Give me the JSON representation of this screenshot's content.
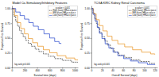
{
  "chart_data": [
    {
      "type": "step",
      "title": "Model Co-Stimulatory/Inhibitory Features",
      "xlabel": "Survival time (days)",
      "ylabel": "Proportion Free Survival",
      "legend_title": "p-value < 0.001",
      "annotation": "log-rank p<0.001",
      "legend": "upper right",
      "grid": false,
      "xlim": [
        0,
        1050
      ],
      "ylim": [
        0,
        1.05
      ],
      "xticks": [
        0,
        200,
        400,
        600,
        800,
        1000
      ],
      "yticks": [
        {
          "value": 0.0,
          "label": "0.00"
        },
        0.25,
        {
          "value": 0.5,
          "label": "0.50"
        },
        0.75,
        {
          "value": 1.0,
          "label": "1.00"
        }
      ],
      "series": [
        {
          "name": "High (n=xx) HR=x.x p=x.x",
          "color": "#111111",
          "line_style": "dashed",
          "x": [
            0,
            30,
            60,
            90,
            120,
            150,
            180,
            220,
            260,
            310,
            370,
            430,
            500,
            580,
            680,
            800,
            950,
            1050
          ],
          "values": [
            1.0,
            0.87,
            0.78,
            0.7,
            0.63,
            0.57,
            0.52,
            0.46,
            0.41,
            0.36,
            0.31,
            0.27,
            0.23,
            0.19,
            0.15,
            0.12,
            0.09,
            0.08
          ]
        },
        {
          "name": "Mid (n=xx) HR=x.x p=x.x",
          "color": "#E8901A",
          "line_style": "solid",
          "x": [
            0,
            40,
            90,
            140,
            200,
            260,
            330,
            410,
            500,
            600,
            720,
            860,
            1000,
            1050
          ],
          "values": [
            1.0,
            0.88,
            0.76,
            0.66,
            0.57,
            0.49,
            0.42,
            0.36,
            0.3,
            0.25,
            0.2,
            0.16,
            0.13,
            0.12
          ]
        },
        {
          "name": "Low (n=xx) HR=x.x p=x.x",
          "color": "#2244CC",
          "line_style": "solid",
          "x": [
            0,
            60,
            130,
            200,
            270,
            340,
            420,
            510,
            600,
            680,
            750,
            780
          ],
          "values": [
            1.0,
            0.94,
            0.88,
            0.82,
            0.76,
            0.7,
            0.64,
            0.57,
            0.5,
            0.44,
            0.41,
            0.4
          ]
        }
      ]
    },
    {
      "type": "step",
      "title": "TCGA KIRC Kidney Renal Carcinoma",
      "xlabel": "Overall Survival (days)",
      "ylabel": "Proportion Free Survival",
      "legend_title": "p-value < 0.001",
      "annotation": "log-rank p<0.001",
      "legend": "upper right",
      "grid": false,
      "xlim": [
        0,
        125
      ],
      "ylim": [
        0,
        1.05
      ],
      "xticks": [
        0,
        20,
        40,
        60,
        80,
        100,
        120
      ],
      "yticks": [
        {
          "value": 0.0,
          "label": "0.00"
        },
        0.25,
        {
          "value": 0.5,
          "label": "0.50"
        },
        0.75,
        {
          "value": 1.0,
          "label": "1.00"
        }
      ],
      "series": [
        {
          "name": "High (n=xx) HR=x.x p=x.x",
          "color": "#111111",
          "line_style": "dashed",
          "x": [
            0,
            3,
            6,
            9,
            12,
            16,
            20,
            25,
            30,
            36,
            43,
            52,
            63,
            76,
            92,
            110,
            120
          ],
          "values": [
            1.0,
            0.92,
            0.83,
            0.75,
            0.67,
            0.59,
            0.52,
            0.45,
            0.38,
            0.32,
            0.26,
            0.21,
            0.17,
            0.13,
            0.1,
            0.07,
            0.06
          ]
        },
        {
          "name": "Mid (n=xx) HR=x.x p=x.x",
          "color": "#E8901A",
          "line_style": "solid",
          "x": [
            0,
            4,
            9,
            15,
            22,
            30,
            39,
            50,
            63,
            78,
            95,
            112,
            120
          ],
          "values": [
            1.0,
            0.91,
            0.81,
            0.71,
            0.62,
            0.53,
            0.46,
            0.4,
            0.35,
            0.3,
            0.26,
            0.23,
            0.22
          ]
        },
        {
          "name": "Low (n=xx) HR=x.x p=x.x",
          "color": "#2244CC",
          "line_style": "solid",
          "x": [
            0,
            3,
            7,
            11,
            15,
            20,
            26,
            33,
            41,
            50,
            61,
            74,
            89,
            106,
            120
          ],
          "values": [
            1.0,
            0.9,
            0.79,
            0.68,
            0.58,
            0.49,
            0.4,
            0.33,
            0.26,
            0.2,
            0.15,
            0.11,
            0.08,
            0.05,
            0.04
          ]
        }
      ]
    }
  ]
}
